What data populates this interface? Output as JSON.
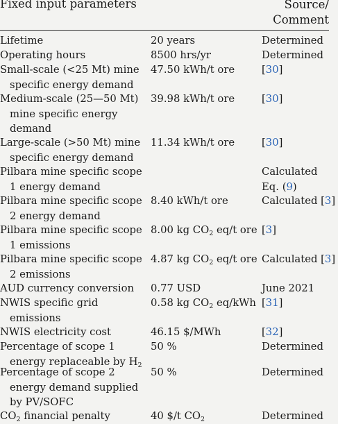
{
  "header": {
    "col1": "Fixed input parameters",
    "col3_line1": "Source/",
    "col3_line2": "Comment"
  },
  "rows": [
    {
      "param": [
        "Lifetime"
      ],
      "value": "20 years",
      "source": "Determined"
    },
    {
      "param": [
        "Operating hours"
      ],
      "value": "8500 hrs/yr",
      "source": "Determined"
    },
    {
      "param": [
        "Small-scale (<25 Mt) mine",
        "specific energy demand"
      ],
      "value": "47.50 kWh/t ore",
      "source_ref": "30"
    },
    {
      "param": [
        "Medium-scale (25—50 Mt)",
        "mine specific energy",
        "demand"
      ],
      "value": "39.98 kWh/t ore",
      "source_ref": "30"
    },
    {
      "param": [
        "Large-scale (>50 Mt) mine",
        "specific energy demand"
      ],
      "value": "11.34 kWh/t ore",
      "source_ref": "30"
    },
    {
      "param": [
        "Pilbara mine specific scope",
        "1 energy demand"
      ],
      "value": "",
      "source": "Calculated",
      "source2_pre": "Eq. ",
      "source2_ref": "9"
    },
    {
      "param": [
        "Pilbara mine specific scope",
        "2 energy demand"
      ],
      "value": "8.40 kWh/t ore",
      "source": "Calculated ",
      "source_ref": "3"
    },
    {
      "param": [
        "Pilbara mine specific scope",
        "1 emissions"
      ],
      "value_pre": "8.00 kg CO",
      "value_sub": "2",
      "value_post": " eq/t ore",
      "source_ref": "3"
    },
    {
      "param": [
        "Pilbara mine specific scope",
        "2 emissions"
      ],
      "value_pre": "4.87 kg CO",
      "value_sub": "2",
      "value_post": " eq/t ore",
      "source": "Calculated ",
      "source_ref": "3"
    },
    {
      "param": [
        "AUD currency conversion"
      ],
      "value": "0.77 USD",
      "source": "June 2021"
    },
    {
      "param": [
        "NWIS specific grid",
        "emissions"
      ],
      "value_pre": "0.58 kg CO",
      "value_sub": "2",
      "value_post": " eq/kWh",
      "source_ref": "31"
    },
    {
      "param": [
        "NWIS electricity cost"
      ],
      "value": "46.15 $/MWh",
      "source_ref": "32"
    },
    {
      "param": [
        "Percentage of scope 1",
        "energy replaceable by H"
      ],
      "param_sub": "2",
      "value": "50 %",
      "source": "Determined"
    },
    {
      "param": [
        "Percentage of scope 2",
        "energy demand supplied",
        "by PV/SOFC"
      ],
      "value": "50 %",
      "source": "Determined"
    },
    {
      "param_pre": "CO",
      "param_sub0": "2",
      "param_post": " financial penalty",
      "value_pre": "40 $/t CO",
      "value_sub": "2",
      "value_post": "",
      "source": "Determined"
    }
  ]
}
